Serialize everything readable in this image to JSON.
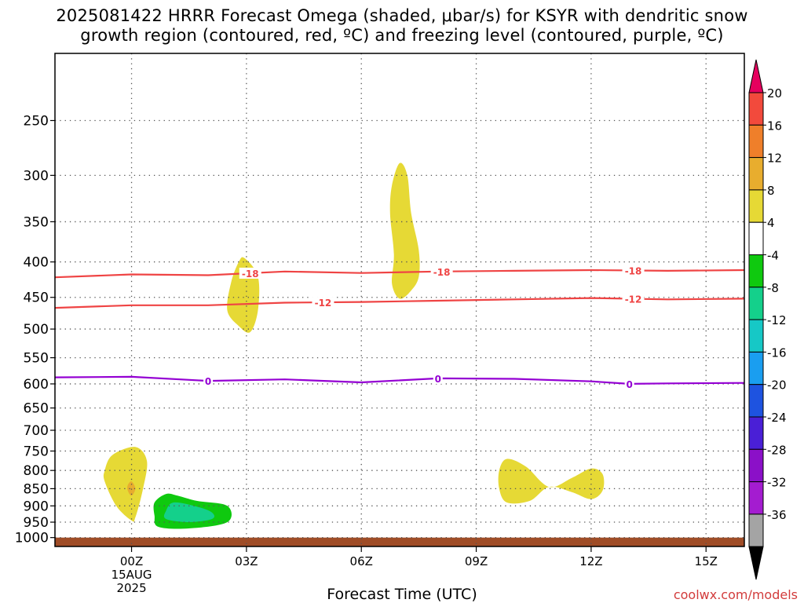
{
  "title": {
    "line1": "2025081422 HRRR Forecast Omega (shaded, μbar/s) for KSYR with dendritic snow",
    "line2": "growth region (contoured, red, ºC) and freezing level (contoured, purple, ºC)"
  },
  "credit": "coolwx.com/models",
  "chart_data": {
    "type": "time-height cross-section",
    "title": "2025081422 HRRR Forecast Omega (shaded, μbar/s) for KSYR with dendritic snow growth region (contoured, red, ºC) and freezing level (contoured, purple, ºC)",
    "xlabel": "Forecast Time (UTC)",
    "ylabel": "",
    "x_range_hours": [
      -2,
      16
    ],
    "x_ticks": [
      {
        "hour": 0,
        "label": "00Z",
        "sub": [
          "15AUG",
          "2025"
        ]
      },
      {
        "hour": 3,
        "label": "03Z"
      },
      {
        "hour": 6,
        "label": "06Z"
      },
      {
        "hour": 9,
        "label": "09Z"
      },
      {
        "hour": 12,
        "label": "12Z"
      },
      {
        "hour": 15,
        "label": "15Z"
      }
    ],
    "y_axis": {
      "scale": "log-pressure",
      "units": "mb",
      "top": 200,
      "bottom": 1030
    },
    "y_ticks": [
      250,
      300,
      350,
      400,
      450,
      500,
      550,
      600,
      650,
      700,
      750,
      800,
      850,
      900,
      950,
      1000
    ],
    "grid": true,
    "colorbar": {
      "labels": [
        20,
        16,
        12,
        8,
        4,
        -4,
        -8,
        -12,
        -16,
        -20,
        -24,
        -28,
        -32,
        -36
      ],
      "colors": [
        "#e6005e",
        "#f24a3c",
        "#ef7f2a",
        "#e8ad2e",
        "#e6d935",
        "#ffffff",
        "#0fc90f",
        "#14d08b",
        "#16c8c6",
        "#1a9ef0",
        "#1e53e0",
        "#4a1fd6",
        "#8b10c8",
        "#a41cd0",
        "#a4a4a4",
        "#000000"
      ]
    },
    "contours": [
      {
        "name": "-18",
        "color": "#ef4444",
        "points": [
          [
            -2,
            421
          ],
          [
            0,
            417
          ],
          [
            2,
            418
          ],
          [
            4,
            413
          ],
          [
            6,
            415
          ],
          [
            8,
            413
          ],
          [
            10,
            412
          ],
          [
            12,
            411
          ],
          [
            14,
            412
          ],
          [
            16,
            411
          ]
        ],
        "labels": [
          {
            "hour": 3.1,
            "text": "-18"
          },
          {
            "hour": 8.1,
            "text": "-18"
          },
          {
            "hour": 13.1,
            "text": "-18"
          }
        ]
      },
      {
        "name": "-12",
        "color": "#ef4444",
        "points": [
          [
            -2,
            466
          ],
          [
            0,
            462
          ],
          [
            2,
            462
          ],
          [
            4,
            458
          ],
          [
            6,
            457
          ],
          [
            8,
            455
          ],
          [
            10,
            453
          ],
          [
            12,
            451
          ],
          [
            14,
            453
          ],
          [
            16,
            452
          ]
        ],
        "labels": [
          {
            "hour": 5.0,
            "text": "-12"
          },
          {
            "hour": 13.1,
            "text": "-12"
          }
        ]
      },
      {
        "name": "0",
        "color": "#9400d3",
        "points": [
          [
            -2,
            587
          ],
          [
            0,
            586
          ],
          [
            2,
            594
          ],
          [
            4,
            591
          ],
          [
            6,
            597
          ],
          [
            8,
            589
          ],
          [
            10,
            590
          ],
          [
            12,
            595
          ],
          [
            13,
            600
          ],
          [
            14,
            599
          ],
          [
            16,
            598
          ]
        ],
        "labels": [
          {
            "hour": 2.0,
            "text": "0"
          },
          {
            "hour": 8.0,
            "text": "0"
          },
          {
            "hour": 13.0,
            "text": "0"
          }
        ]
      }
    ],
    "omega_regions": [
      {
        "range": "4 to 8",
        "points": [
          [
            -0.7,
            800
          ],
          [
            -0.5,
            760
          ],
          [
            0.1,
            740
          ],
          [
            0.4,
            775
          ],
          [
            0.3,
            850
          ],
          [
            0.1,
            935
          ],
          [
            0,
            945
          ],
          [
            -0.4,
            900
          ],
          [
            -0.7,
            830
          ]
        ]
      },
      {
        "range": "8 to 12",
        "points": [
          [
            -0.1,
            840
          ],
          [
            0,
            830
          ],
          [
            0.1,
            850
          ],
          [
            0,
            870
          ],
          [
            -0.1,
            855
          ]
        ]
      },
      {
        "range": "4 to 8",
        "points": [
          [
            2.6,
            428
          ],
          [
            2.8,
            400
          ],
          [
            2.95,
            395
          ],
          [
            3.3,
            420
          ],
          [
            3.3,
            470
          ],
          [
            3.1,
            505
          ],
          [
            2.8,
            495
          ],
          [
            2.5,
            470
          ]
        ]
      },
      {
        "range": "4 to 8",
        "points": [
          [
            6.8,
            310
          ],
          [
            7.0,
            288
          ],
          [
            7.2,
            300
          ],
          [
            7.3,
            340
          ],
          [
            7.5,
            385
          ],
          [
            7.5,
            420
          ],
          [
            7.3,
            440
          ],
          [
            7.0,
            452
          ],
          [
            6.8,
            430
          ],
          [
            6.85,
            390
          ],
          [
            6.75,
            340
          ]
        ]
      },
      {
        "range": "4 to 8",
        "points": [
          [
            9.6,
            800
          ],
          [
            9.8,
            770
          ],
          [
            10.3,
            790
          ],
          [
            10.9,
            845
          ],
          [
            11.5,
            820
          ],
          [
            12.0,
            795
          ],
          [
            12.3,
            810
          ],
          [
            12.3,
            855
          ],
          [
            12.0,
            880
          ],
          [
            11.5,
            860
          ],
          [
            10.9,
            845
          ],
          [
            10.4,
            885
          ],
          [
            9.8,
            890
          ],
          [
            9.6,
            850
          ]
        ]
      },
      {
        "range": "-4 to -8",
        "points": [
          [
            0.6,
            890
          ],
          [
            0.9,
            865
          ],
          [
            1.2,
            870
          ],
          [
            1.7,
            885
          ],
          [
            2.5,
            900
          ],
          [
            2.5,
            950
          ],
          [
            1.5,
            970
          ],
          [
            0.7,
            965
          ],
          [
            0.6,
            930
          ]
        ]
      },
      {
        "range": "-8 to -12",
        "points": [
          [
            0.9,
            915
          ],
          [
            1.1,
            890
          ],
          [
            1.7,
            902
          ],
          [
            2.1,
            920
          ],
          [
            2.1,
            940
          ],
          [
            1.5,
            950
          ],
          [
            0.9,
            940
          ]
        ]
      }
    ],
    "terrain": {
      "below_pressure": 1000,
      "color": "#9f4c26"
    }
  }
}
